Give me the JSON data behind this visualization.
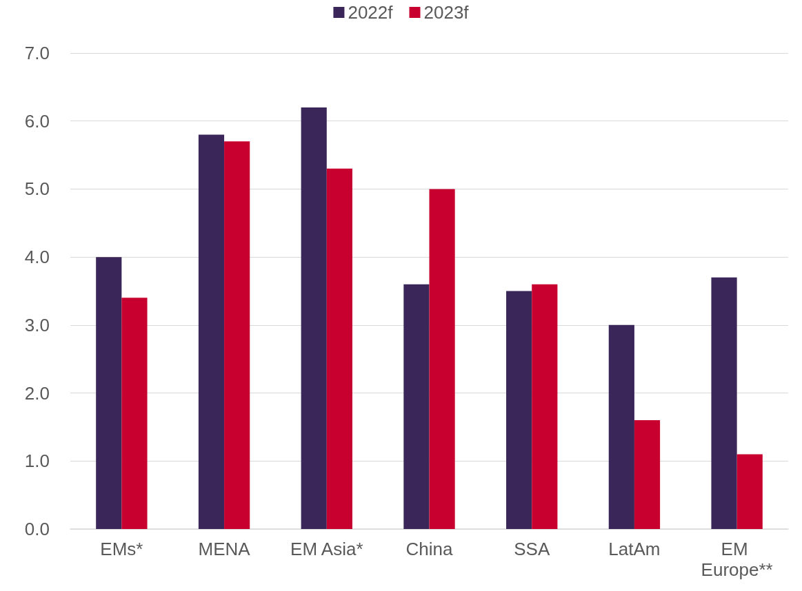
{
  "chart_data": {
    "type": "bar",
    "categories": [
      "EMs*",
      "MENA",
      "EM Asia*",
      "China",
      "SSA",
      "LatAm",
      "EM Europe**"
    ],
    "series": [
      {
        "name": "2022f",
        "color": "#3a2659",
        "values": [
          4.0,
          5.8,
          6.2,
          3.6,
          3.5,
          3.0,
          3.7
        ]
      },
      {
        "name": "2023f",
        "color": "#c8002f",
        "values": [
          3.4,
          5.7,
          5.3,
          5.0,
          3.6,
          1.6,
          1.1
        ]
      }
    ],
    "ylim": [
      0,
      7
    ],
    "yticks": [
      {
        "value": 0,
        "label": "0.0"
      },
      {
        "value": 1,
        "label": "1.0"
      },
      {
        "value": 2,
        "label": "2.0"
      },
      {
        "value": 3,
        "label": "3.0"
      },
      {
        "value": 4,
        "label": "4.0"
      },
      {
        "value": 5,
        "label": "5.0"
      },
      {
        "value": 6,
        "label": "6.0"
      },
      {
        "value": 7,
        "label": "7.0"
      }
    ],
    "grid": "y",
    "legend": "top"
  }
}
